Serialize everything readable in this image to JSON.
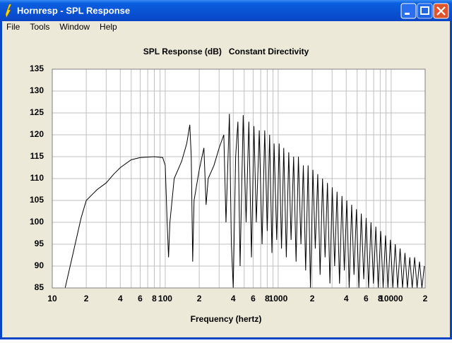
{
  "window": {
    "title": "Hornresp - SPL Response"
  },
  "menu": [
    "File",
    "Tools",
    "Window",
    "Help"
  ],
  "chart_data": {
    "type": "line",
    "title": "SPL Response (dB)   Constant Directivity",
    "xlabel": "Frequency (hertz)",
    "log_x": true,
    "grid": true,
    "color": "#000000",
    "xlim": [
      10,
      20000
    ],
    "ylim": [
      85,
      135
    ],
    "yticks": [
      85,
      90,
      95,
      100,
      105,
      110,
      115,
      120,
      125,
      130,
      135
    ],
    "xticks": [
      10,
      {
        "value": 20,
        "label": "2"
      },
      {
        "value": 40,
        "label": "4"
      },
      {
        "value": 60,
        "label": "6"
      },
      {
        "value": 80,
        "label": "8"
      },
      100,
      {
        "value": 200,
        "label": "2"
      },
      {
        "value": 400,
        "label": "4"
      },
      {
        "value": 600,
        "label": "6"
      },
      {
        "value": 800,
        "label": "8"
      },
      1000,
      {
        "value": 2000,
        "label": "2"
      },
      {
        "value": 4000,
        "label": "4"
      },
      {
        "value": 6000,
        "label": "6"
      },
      {
        "value": 8000,
        "label": "8"
      },
      10000,
      {
        "value": 20000,
        "label": "2"
      }
    ],
    "xminor_ticks": [
      30,
      50,
      70,
      90,
      300,
      500,
      700,
      900,
      3000,
      5000,
      7000,
      9000
    ],
    "x": [
      13,
      15,
      18,
      20,
      25,
      30,
      35,
      40,
      50,
      60,
      80,
      95,
      100,
      104,
      107,
      110,
      120,
      140,
      155,
      165,
      170,
      175,
      180,
      200,
      220,
      230,
      240,
      270,
      300,
      330,
      345,
      370,
      385,
      400,
      420,
      440,
      460,
      490,
      520,
      550,
      580,
      610,
      640,
      680,
      720,
      760,
      800,
      840,
      880,
      920,
      970,
      1020,
      1070,
      1120,
      1180,
      1240,
      1300,
      1370,
      1440,
      1510,
      1590,
      1670,
      1750,
      1840,
      1930,
      2030,
      2130,
      2240,
      2350,
      2470,
      2600,
      2730,
      2870,
      3010,
      3160,
      3320,
      3490,
      3670,
      3850,
      4050,
      4250,
      4470,
      4690,
      4930,
      5180,
      5440,
      5720,
      6010,
      6310,
      6630,
      6970,
      7320,
      7690,
      8080,
      8490,
      8920,
      9370,
      9850,
      10350,
      10870,
      11420,
      12000,
      12610,
      13250,
      13920,
      14620,
      15360,
      16140,
      16960,
      17820,
      18720,
      19670
    ],
    "values": [
      85,
      92,
      101,
      105,
      107.5,
      109,
      111,
      112.5,
      114.3,
      114.8,
      115,
      114.8,
      113,
      100,
      92,
      100,
      110,
      114,
      118,
      122.3,
      115,
      91,
      105,
      112,
      117,
      104,
      110,
      113,
      117,
      120,
      100,
      124.8,
      95,
      85,
      115,
      123,
      90,
      124.5,
      100,
      123,
      92,
      122,
      100,
      121,
      95,
      121,
      98,
      120,
      93,
      118,
      96,
      118,
      94,
      117,
      92,
      116,
      96,
      115,
      91,
      115,
      95,
      113,
      89,
      113,
      85,
      112,
      94,
      111,
      88,
      110,
      92,
      109,
      86,
      108,
      90,
      107,
      86,
      106,
      89,
      105,
      85,
      104,
      88,
      103,
      85,
      102,
      87,
      101,
      85,
      100,
      86,
      99,
      85,
      98,
      85,
      97,
      85,
      96,
      85,
      95,
      85,
      94,
      85,
      93,
      85,
      92,
      85,
      92,
      85,
      91,
      85,
      90
    ]
  }
}
